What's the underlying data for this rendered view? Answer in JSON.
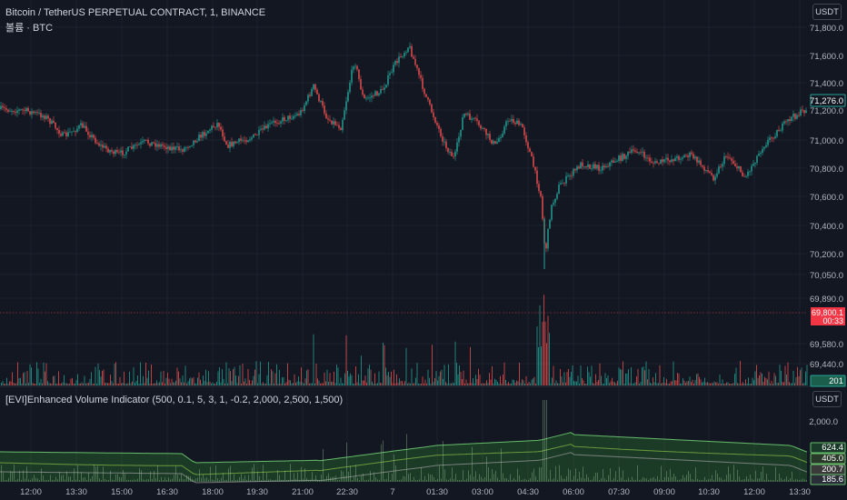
{
  "header": {
    "symbol_legend": "Bitcoin / TetherUS PERPETUAL CONTRACT, 1, BINANCE",
    "volume_legend": "볼륨 · BTC",
    "currency_button": "USDT"
  },
  "price_pane": {
    "y_ticks": [
      "71,800.0",
      "71,600.0",
      "71,400.0",
      "71,200.0",
      "71,000.0",
      "70,800.0",
      "70,600.0",
      "70,400.0",
      "70,200.0",
      "70,050.0",
      "69,890.0",
      "69,580.0",
      "69,440.0"
    ],
    "last_price_badge": "71,276.0",
    "crosshair_price": "69,800.1",
    "crosshair_countdown": "00:33",
    "volume_badge": "201"
  },
  "indicator_pane": {
    "legend": "[EVI]Enhanced Volume Indicator (500, 0.1, 5, 3, 1, -0.2, 2,000, 2,500, 1,500)",
    "currency_button": "USDT",
    "y_ticks": [
      "2,000.0"
    ],
    "badges": [
      "624.4",
      "405.0",
      "200.7",
      "185.6"
    ]
  },
  "time_axis": {
    "labels": [
      "12:00",
      "13:30",
      "15:00",
      "16:30",
      "18:00",
      "19:30",
      "21:00",
      "22:30",
      "7",
      "01:30",
      "03:00",
      "04:30",
      "06:00",
      "07:30",
      "09:00",
      "10:30",
      "12:00",
      "13:30"
    ]
  },
  "colors": {
    "background": "#131722",
    "up": "#26a69a",
    "down": "#ef5350",
    "grid": "#1e222d",
    "badge_green": "#1b5e4b",
    "crosshair_red": "#f23645",
    "band_green": "#2e7d32"
  }
}
